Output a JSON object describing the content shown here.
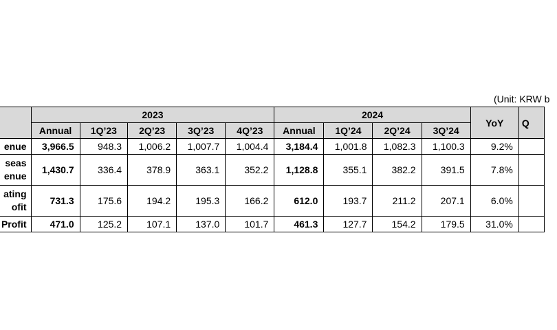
{
  "unit_text": "(Unit: KRW b",
  "table": {
    "years": [
      "2023",
      "2024"
    ],
    "yoy_label": "YoY",
    "extra_label": "Q",
    "subheads_2023": [
      "Annual",
      "1Q’23",
      "2Q’23",
      "3Q’23",
      "4Q’23"
    ],
    "subheads_2024": [
      "Annual",
      "1Q’24",
      "2Q’24",
      "3Q’24"
    ],
    "rows": [
      {
        "label": "enue",
        "y2023": [
          "3,966.5",
          "948.3",
          "1,006.2",
          "1,007.7",
          "1,004.4"
        ],
        "y2024": [
          "3,184.4",
          "1,001.8",
          "1,082.3",
          "1,100.3"
        ],
        "yoy": "9.2%"
      },
      {
        "label": "seas\nenue",
        "y2023": [
          "1,430.7",
          "336.4",
          "378.9",
          "363.1",
          "352.2"
        ],
        "y2024": [
          "1,128.8",
          "355.1",
          "382.2",
          "391.5"
        ],
        "yoy": "7.8%"
      },
      {
        "label": "ating\nofit",
        "y2023": [
          "731.3",
          "175.6",
          "194.2",
          "195.3",
          "166.2"
        ],
        "y2024": [
          "612.0",
          "193.7",
          "211.2",
          "207.1"
        ],
        "yoy": "6.0%"
      },
      {
        "label": "Profit",
        "y2023": [
          "471.0",
          "125.2",
          "107.1",
          "137.0",
          "101.7"
        ],
        "y2024": [
          "461.3",
          "127.7",
          "154.2",
          "179.5"
        ],
        "yoy": "31.0%"
      }
    ]
  }
}
